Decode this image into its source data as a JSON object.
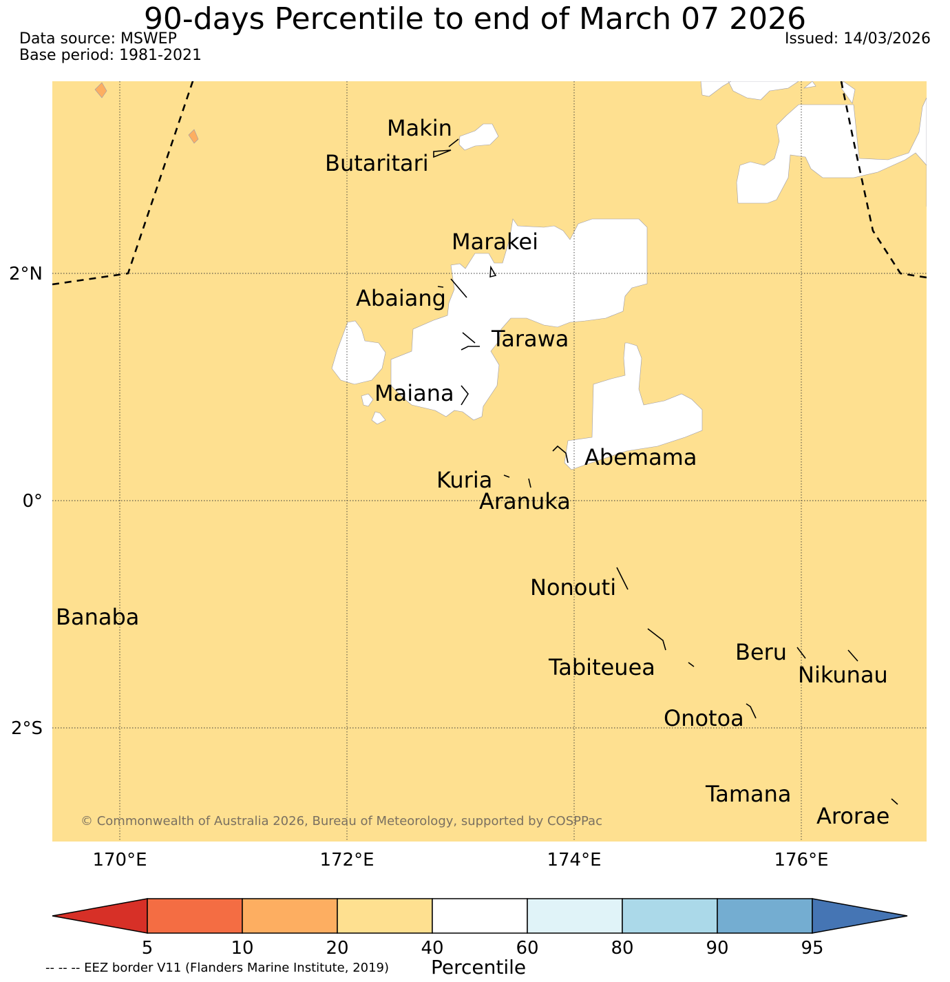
{
  "title": "90-days Percentile to end of March 07 2026",
  "data_source": "Data source: MSWEP",
  "base_period": "Base period: 1981-2021",
  "issued": "Issued: 14/03/2026",
  "copyright": "© Commonwealth of Australia 2026, Bureau of Meteorology, supported by COSPPac",
  "eez_note": "-- -- -- EEZ border V11 (Flanders Marine Institute, 2019)",
  "colorbar": {
    "label": "Percentile",
    "ticks": [
      "5",
      "10",
      "20",
      "40",
      "60",
      "80",
      "90",
      "95"
    ],
    "colors": {
      "lt5": "#d73027",
      "p5_10": "#f46d43",
      "p10_20": "#fdae61",
      "p20_40": "#fee090",
      "p40_60": "#ffffff",
      "p60_80": "#e0f3f8",
      "p80_90": "#abd9e9",
      "p90_95": "#74add1",
      "gt95": "#4575b4"
    }
  },
  "axes": {
    "lon_labels": [
      "170°E",
      "172°E",
      "174°E",
      "176°E"
    ],
    "lat_labels": [
      "2°N",
      "0°",
      "2°S"
    ]
  },
  "places": {
    "makin": "Makin",
    "butaritari": "Butaritari",
    "marakei": "Marakei",
    "abaiang": "Abaiang",
    "tarawa": "Tarawa",
    "maiana": "Maiana",
    "abemama": "Abemama",
    "kuria": "Kuria",
    "aranuka": "Aranuka",
    "nonouti": "Nonouti",
    "banaba": "Banaba",
    "beru": "Beru",
    "tabiteuea": "Tabiteuea",
    "nikunau": "Nikunau",
    "onotoa": "Onotoa",
    "tamana": "Tamana",
    "arorae": "Arorae"
  }
}
